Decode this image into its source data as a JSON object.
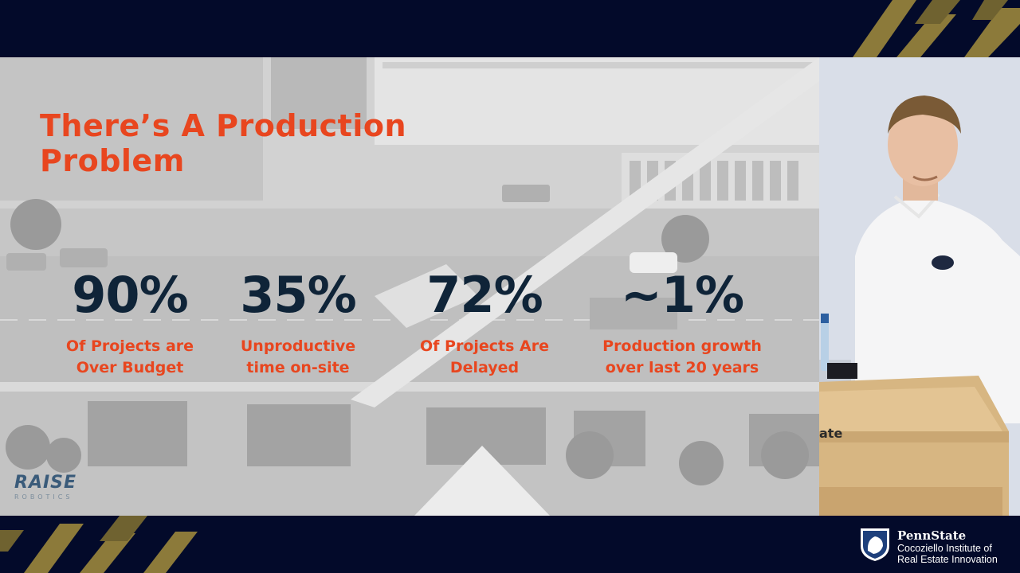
{
  "slide": {
    "title_line1": "There’s A Production",
    "title_line2": "Problem",
    "stats": [
      {
        "value": "90%",
        "label_line1": "Of Projects are",
        "label_line2": "Over Budget"
      },
      {
        "value": "35%",
        "label_line1": "Unproductive",
        "label_line2": "time on-site"
      },
      {
        "value": "72%",
        "label_line1": "Of Projects Are",
        "label_line2": "Delayed"
      },
      {
        "value": "~1%",
        "label_line1": "Production growth",
        "label_line2": "over last 20 years"
      }
    ],
    "logo_word": "RAISE",
    "logo_sub": "ROBOTICS"
  },
  "video": {
    "podium_text": "ate"
  },
  "branding": {
    "name": "PennState",
    "line1": "Cocoziello Institute of",
    "line2": "Real Estate Innovation"
  },
  "colors": {
    "accent_orange": "#e8461f",
    "stat_navy": "#0f2438",
    "frame_navy": "#030a2a",
    "deco_gold": "#8c7a3a"
  }
}
